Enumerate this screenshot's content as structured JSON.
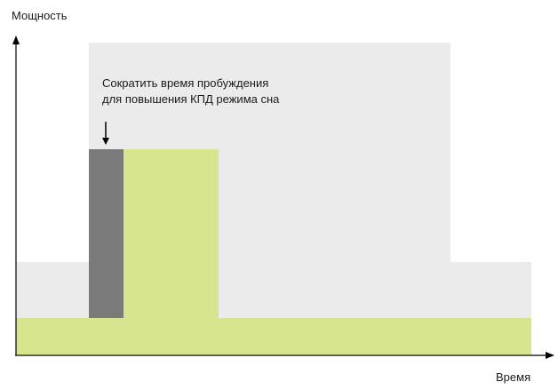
{
  "y_axis_label": "Мощность",
  "x_axis_label": "Время",
  "annotation": {
    "line1": "Сократить время пробуждения",
    "line2": "для повышения КПД режима сна"
  },
  "colors": {
    "background_region": "#ebebeb",
    "baseline": "#d8e58f",
    "active": "#d8e58f",
    "wakeup": "#7a7a7a",
    "axis": "#000000"
  }
}
